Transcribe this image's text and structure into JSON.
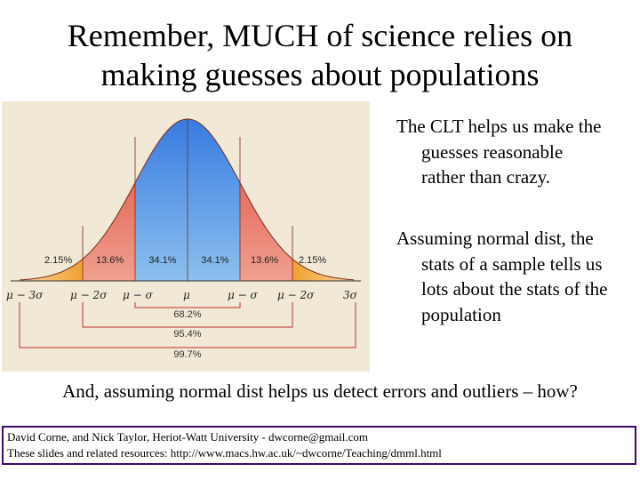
{
  "title": {
    "line1": "Remember, MUCH of science relies on",
    "line2": "making guesses about populations"
  },
  "figure": {
    "percentages": [
      "2.15%",
      "13.6%",
      "34.1%",
      "34.1%",
      "13.6%",
      "2.15%"
    ],
    "axis_labels": [
      "μ − 3σ",
      "μ − 2σ",
      "μ − σ",
      "μ",
      "μ − σ",
      "μ − 2σ",
      "3σ"
    ],
    "brackets": [
      "68.2%",
      "95.4%",
      "99.7%"
    ],
    "colors": {
      "background": "#f1e8d6",
      "center": "#3f86e6",
      "mid": "#e25a4b",
      "tail": "#f0a63b",
      "bracket": "#c8514e"
    }
  },
  "paragraph1": {
    "lines": [
      "The CLT helps us make the",
      "guesses reasonable",
      "rather than crazy."
    ]
  },
  "paragraph2": {
    "lines": [
      "Assuming normal dist, the",
      "stats of a sample tells us",
      "lots about the stats of the",
      "population"
    ]
  },
  "bottom_text": "And, assuming normal dist helps us detect errors and outliers – how?",
  "footer": {
    "line1": "David Corne, and Nick Taylor,  Heriot-Watt University  -  dwcorne@gmail.com",
    "line2": "These slides and related resources:   http://www.macs.hw.ac.uk/~dwcorne/Teaching/dmml.html"
  }
}
